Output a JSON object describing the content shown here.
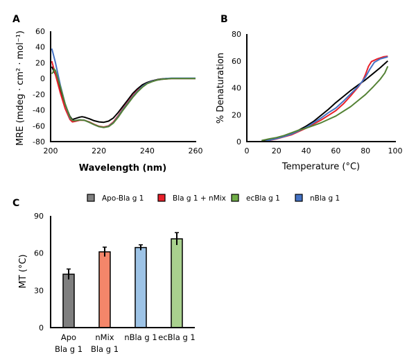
{
  "chart_data": [
    {
      "panel": "A",
      "type": "line",
      "title": "",
      "xlabel": "Wavelength (nm)",
      "ylabel": "MRE (mdeg · cm² · mol⁻¹)",
      "xlim": [
        200,
        260
      ],
      "ylim": [
        -80,
        60
      ],
      "xticks": [
        200,
        220,
        240,
        260
      ],
      "yticks": [
        60,
        40,
        20,
        0,
        -20,
        -40,
        -60,
        -80
      ],
      "grid": false,
      "series": [
        {
          "name": "Apo-Bla g 1",
          "color": "#000000",
          "x": [
            200.5,
            202,
            204,
            206,
            208,
            209,
            210,
            212,
            213,
            214,
            216,
            218,
            220,
            222,
            224,
            226,
            228,
            230,
            232,
            234,
            236,
            238,
            240,
            242,
            244,
            246,
            248,
            250,
            255,
            260
          ],
          "y": [
            15,
            5,
            -15,
            -33,
            -48,
            -52,
            -51,
            -49,
            -48.5,
            -49,
            -51,
            -53.5,
            -55,
            -55.5,
            -54,
            -50,
            -43,
            -35,
            -27,
            -19,
            -13,
            -8,
            -5,
            -3,
            -1.5,
            -0.5,
            0,
            0,
            0,
            0
          ]
        },
        {
          "name": "Bla g 1 + nMix",
          "color": "#e8202a",
          "x": [
            200.5,
            202,
            204,
            206,
            208,
            209,
            210,
            212,
            214,
            216,
            218,
            220,
            222,
            224,
            226,
            228,
            230,
            232,
            234,
            236,
            238,
            240,
            242,
            244,
            246,
            248,
            250,
            255,
            260
          ],
          "y": [
            22,
            5,
            -18,
            -38,
            -52,
            -55,
            -54.5,
            -53,
            -53,
            -55,
            -58,
            -60.5,
            -61.5,
            -60,
            -55,
            -47,
            -38,
            -30,
            -22,
            -15,
            -10,
            -6,
            -3.5,
            -2,
            -1,
            -0.5,
            0,
            0,
            0
          ]
        },
        {
          "name": "nBla g 1",
          "color": "#4472c4",
          "x": [
            200.5,
            201,
            202,
            204,
            206,
            208,
            209,
            210,
            212,
            214,
            216,
            218,
            220,
            222,
            224,
            226,
            228,
            230,
            232,
            234,
            236,
            238,
            240,
            242,
            244,
            246,
            248,
            250,
            255,
            260
          ],
          "y": [
            38,
            32,
            20,
            -8,
            -32,
            -50,
            -53,
            -53.5,
            -52.5,
            -53,
            -55.5,
            -58.5,
            -61,
            -62,
            -60.5,
            -56,
            -48,
            -39,
            -31,
            -23,
            -16,
            -10,
            -6,
            -3.5,
            -2,
            -1,
            0,
            0.5,
            0.5,
            0.5
          ]
        },
        {
          "name": "ecBla g 1",
          "color": "#548235",
          "x": [
            200.5,
            201,
            201.5,
            202,
            204,
            206,
            208,
            209,
            210,
            212,
            214,
            216,
            218,
            220,
            222,
            224,
            226,
            228,
            230,
            232,
            234,
            236,
            238,
            240,
            242,
            244,
            246,
            248,
            250,
            255,
            260
          ],
          "y": [
            6,
            8,
            12,
            10,
            -10,
            -32,
            -49,
            -53,
            -53.5,
            -52.5,
            -53,
            -55.5,
            -58.5,
            -61,
            -62,
            -61,
            -56.5,
            -49,
            -40,
            -32,
            -24,
            -17,
            -11,
            -6.5,
            -4,
            -2,
            -1,
            -0.5,
            0,
            0,
            0
          ]
        }
      ]
    },
    {
      "panel": "B",
      "type": "line",
      "title": "",
      "xlabel": "Temperature (°C)",
      "ylabel": "% Denaturation",
      "xlim": [
        0,
        100
      ],
      "ylim": [
        0,
        80
      ],
      "xticks": [
        0,
        20,
        40,
        60,
        80,
        100
      ],
      "yticks": [
        80,
        60,
        40,
        20,
        0
      ],
      "grid": false,
      "series": [
        {
          "name": "Apo-Bla g 1",
          "color": "#000000",
          "x": [
            10,
            15,
            20,
            25,
            30,
            35,
            40,
            45,
            50,
            55,
            60,
            65,
            70,
            75,
            80,
            85,
            90,
            95
          ],
          "y": [
            0.5,
            1.5,
            2.5,
            4,
            6,
            8.5,
            11.5,
            15,
            19.5,
            24,
            29,
            33.5,
            38,
            42,
            46,
            50.5,
            55,
            60
          ]
        },
        {
          "name": "Bla g 1 + nMix",
          "color": "#e8202a",
          "x": [
            12,
            15,
            20,
            25,
            30,
            35,
            40,
            45,
            50,
            55,
            60,
            65,
            70,
            75,
            78,
            80,
            82,
            84,
            88,
            92,
            95
          ],
          "y": [
            0,
            0.8,
            2,
            3.5,
            5,
            7.5,
            10,
            13,
            16,
            19.5,
            23,
            28,
            34,
            40.5,
            45,
            50,
            56,
            59.5,
            61.5,
            63,
            63.5
          ]
        },
        {
          "name": "nBla g 1",
          "color": "#4472c4",
          "x": [
            12,
            15,
            20,
            25,
            30,
            35,
            40,
            45,
            50,
            55,
            60,
            65,
            70,
            75,
            78,
            80,
            83,
            86,
            90,
            95
          ],
          "y": [
            0,
            1,
            2.2,
            3.7,
            5.5,
            8,
            10.5,
            14,
            17.5,
            21.5,
            25,
            30,
            35.5,
            41,
            45,
            48,
            54,
            59,
            61.5,
            63
          ]
        },
        {
          "name": "ecBla g 1",
          "color": "#548235",
          "x": [
            10,
            15,
            20,
            25,
            30,
            35,
            40,
            45,
            50,
            55,
            60,
            65,
            70,
            75,
            80,
            85,
            90,
            93,
            95
          ],
          "y": [
            0.8,
            2,
            3,
            4.5,
            6.5,
            8.5,
            10,
            12,
            14,
            16.5,
            19,
            22.5,
            26,
            30.5,
            35,
            40.5,
            46.5,
            51,
            56
          ]
        }
      ]
    },
    {
      "panel": "C",
      "type": "bar",
      "title": "",
      "xlabel": "",
      "ylabel": "MT (°C)",
      "ylim": [
        0,
        90
      ],
      "yticks": [
        90,
        60,
        30,
        0
      ],
      "grid": false,
      "legend": {
        "placement": "top",
        "entries": [
          {
            "label": "Apo-Bla g 1",
            "color": "#7f7f7f"
          },
          {
            "label": "Bla g 1 + nMix",
            "color": "#e8202a"
          },
          {
            "label": "ecBla g 1",
            "color": "#70ad47"
          },
          {
            "label": "nBla g 1",
            "color": "#4472c4"
          }
        ]
      },
      "categories": [
        {
          "line1": "Apo",
          "line2": "Bla g 1"
        },
        {
          "line1": "nMix",
          "line2": "Bla g 1"
        },
        {
          "line1": "nBla g 1",
          "line2": ""
        },
        {
          "line1": "ecBla g 1",
          "line2": ""
        }
      ],
      "values": [
        43,
        61,
        64.5,
        71.5
      ],
      "errors": [
        4.2,
        3.8,
        2.2,
        5
      ],
      "colors": [
        "#7f7f7f",
        "#f4866a",
        "#9dc3e6",
        "#a9d18e"
      ]
    }
  ]
}
